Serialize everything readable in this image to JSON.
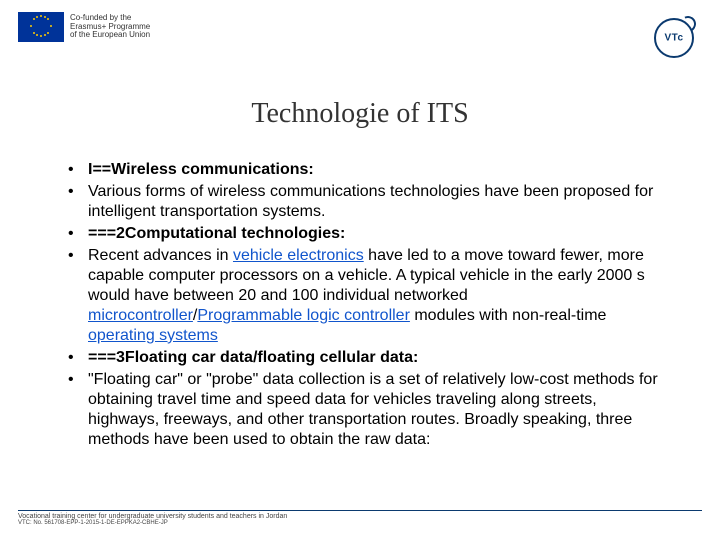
{
  "header": {
    "eu_text_line1": "Co-funded by the",
    "eu_text_line2": "Erasmus+ Programme",
    "eu_text_line3": "of the European Union",
    "vtc_label": "VTc"
  },
  "title": "Technologie of ITS",
  "bullets": [
    {
      "type": "bold",
      "text": "I==Wireless communications:"
    },
    {
      "type": "plain",
      "text": "Various forms of wireless communications technologies have been proposed for intelligent transportation systems."
    },
    {
      "type": "bold",
      "text": "===2Computational technologies:"
    },
    {
      "type": "rich",
      "parts": [
        {
          "text": "Recent advances in "
        },
        {
          "text": "vehicle electronics",
          "link": true
        },
        {
          "text": " have led to a move toward fewer, more capable computer processors on a vehicle. A typical vehicle in the early 2000 s would have between 20 and 100 individual networked "
        },
        {
          "text": "microcontroller",
          "link": true
        },
        {
          "text": "/"
        },
        {
          "text": "Programmable logic controller",
          "link": true
        },
        {
          "text": " modules with non-real-time "
        },
        {
          "text": "operating systems",
          "link": true
        }
      ]
    },
    {
      "type": "bold_indent",
      "text": " ===3Floating car data/floating cellular data:"
    },
    {
      "type": "plain",
      "text": "\"Floating car\" or \"probe\" data collection is a set of relatively low-cost methods for obtaining travel time and speed data for vehicles traveling along streets, highways, freeways, and other transportation routes. Broadly speaking, three methods have been used to obtain the raw data:"
    }
  ],
  "footer": {
    "line1": "Vocational training center for undergraduate university students and teachers in Jordan",
    "line2": "VTC: No. 561708-EPP-1-2015-1-DE-EPPKA2-CBHE-JP"
  },
  "colors": {
    "link": "#1155cc",
    "title": "#333333",
    "footer_border": "#0b3a6f"
  }
}
